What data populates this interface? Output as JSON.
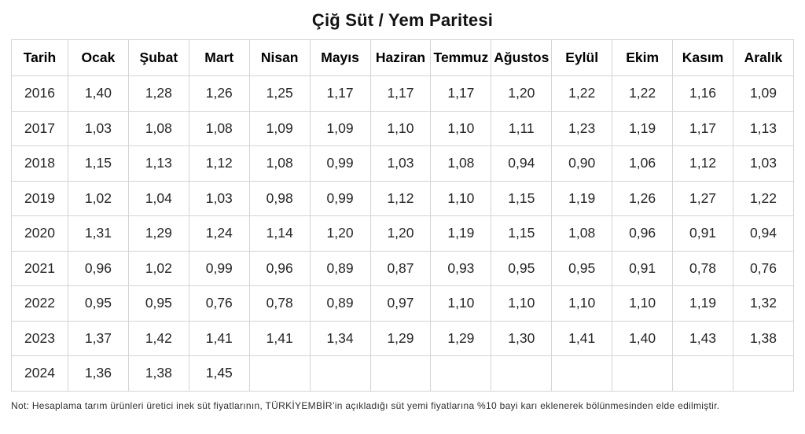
{
  "title": "Çiğ Süt / Yem Paritesi",
  "table": {
    "columns": [
      "Tarih",
      "Ocak",
      "Şubat",
      "Mart",
      "Nisan",
      "Mayıs",
      "Haziran",
      "Temmuz",
      "Ağustos",
      "Eylül",
      "Ekim",
      "Kasım",
      "Aralık"
    ],
    "rows": [
      {
        "year": "2016",
        "values": [
          "1,40",
          "1,28",
          "1,26",
          "1,25",
          "1,17",
          "1,17",
          "1,17",
          "1,20",
          "1,22",
          "1,22",
          "1,16",
          "1,09"
        ]
      },
      {
        "year": "2017",
        "values": [
          "1,03",
          "1,08",
          "1,08",
          "1,09",
          "1,09",
          "1,10",
          "1,10",
          "1,11",
          "1,23",
          "1,19",
          "1,17",
          "1,13"
        ]
      },
      {
        "year": "2018",
        "values": [
          "1,15",
          "1,13",
          "1,12",
          "1,08",
          "0,99",
          "1,03",
          "1,08",
          "0,94",
          "0,90",
          "1,06",
          "1,12",
          "1,03"
        ]
      },
      {
        "year": "2019",
        "values": [
          "1,02",
          "1,04",
          "1,03",
          "0,98",
          "0,99",
          "1,12",
          "1,10",
          "1,15",
          "1,19",
          "1,26",
          "1,27",
          "1,22"
        ]
      },
      {
        "year": "2020",
        "values": [
          "1,31",
          "1,29",
          "1,24",
          "1,14",
          "1,20",
          "1,20",
          "1,19",
          "1,15",
          "1,08",
          "0,96",
          "0,91",
          "0,94"
        ]
      },
      {
        "year": "2021",
        "values": [
          "0,96",
          "1,02",
          "0,99",
          "0,96",
          "0,89",
          "0,87",
          "0,93",
          "0,95",
          "0,95",
          "0,91",
          "0,78",
          "0,76"
        ]
      },
      {
        "year": "2022",
        "values": [
          "0,95",
          "0,95",
          "0,76",
          "0,78",
          "0,89",
          "0,97",
          "1,10",
          "1,10",
          "1,10",
          "1,10",
          "1,19",
          "1,32"
        ]
      },
      {
        "year": "2023",
        "values": [
          "1,37",
          "1,42",
          "1,41",
          "1,41",
          "1,34",
          "1,29",
          "1,29",
          "1,30",
          "1,41",
          "1,40",
          "1,43",
          "1,38"
        ]
      },
      {
        "year": "2024",
        "values": [
          "1,36",
          "1,38",
          "1,45",
          "",
          "",
          "",
          "",
          "",
          "",
          "",
          "",
          ""
        ]
      }
    ]
  },
  "note": "Not: Hesaplama tarım ürünleri üretici inek süt fiyatlarının, TÜRKİYEMBİR’in açıkladığı süt yemi fiyatlarına %10 bayi karı eklenerek bölünmesinden elde edilmiştir.",
  "colors": {
    "background": "#ffffff",
    "border": "#d4d4d4",
    "title_text": "#121212",
    "header_text": "#000000",
    "cell_text": "#262626",
    "note_text": "#2e2e2e"
  }
}
